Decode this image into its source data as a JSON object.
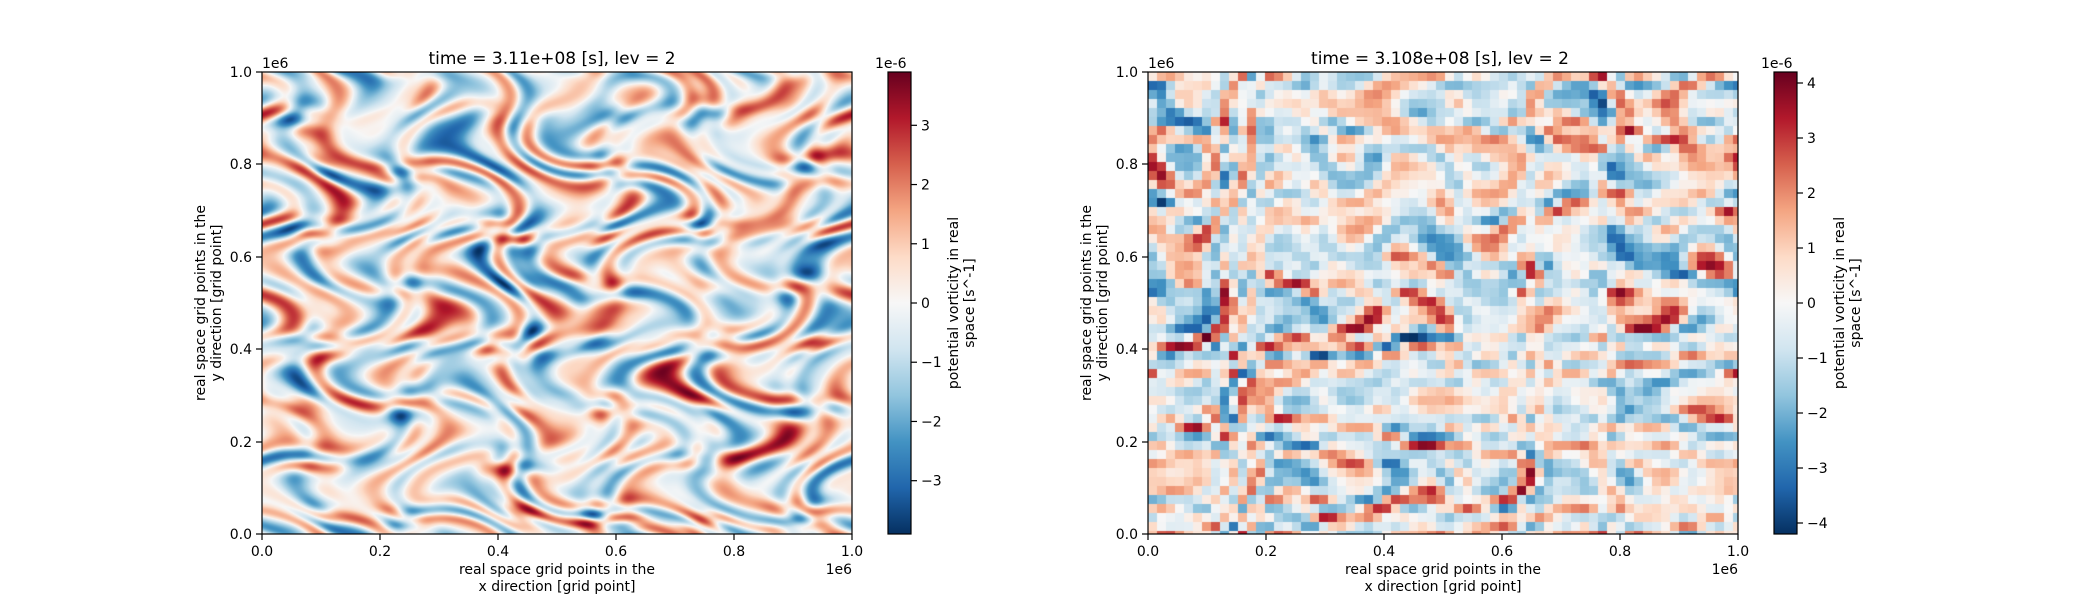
{
  "chart_data": [
    {
      "type": "heatmap",
      "title": "time = 3.11e+08 [s], lev = 2",
      "xlabel": [
        "real space grid points in the",
        "x direction [grid point]"
      ],
      "ylabel": [
        "real space grid points in the",
        "y direction [grid point]"
      ],
      "x_ticks": [
        "0.0",
        "0.2",
        "0.4",
        "0.6",
        "0.8",
        "1.0"
      ],
      "y_ticks": [
        "0.0",
        "0.2",
        "0.4",
        "0.6",
        "0.8",
        "1.0"
      ],
      "x_offset": "1e6",
      "y_offset": "1e6",
      "xlim": [
        0,
        1000000
      ],
      "ylim": [
        0,
        1000000
      ],
      "colormap": "RdBu_r",
      "resolution": "high (smooth)",
      "seed": 7,
      "colorbar": {
        "label": [
          "potential vorticity in real",
          "space [s^-1]"
        ],
        "offset": "1e-6",
        "range": [
          -3.9e-06,
          3.9e-06
        ],
        "ticks": [
          3,
          2,
          1,
          0,
          -1,
          -2,
          -3
        ],
        "tick_labels": [
          "3",
          "2",
          "1",
          "0",
          "−1",
          "−2",
          "−3"
        ]
      }
    },
    {
      "type": "heatmap",
      "title": "time = 3.108e+08 [s], lev = 2",
      "xlabel": [
        "real space grid points in the",
        "x direction [grid point]"
      ],
      "ylabel": [
        "real space grid points in the",
        "y direction [grid point]"
      ],
      "x_ticks": [
        "0.0",
        "0.2",
        "0.4",
        "0.6",
        "0.8",
        "1.0"
      ],
      "y_ticks": [
        "0.0",
        "0.2",
        "0.4",
        "0.6",
        "0.8",
        "1.0"
      ],
      "x_offset": "1e6",
      "y_offset": "1e6",
      "xlim": [
        0,
        1000000
      ],
      "ylim": [
        0,
        1000000
      ],
      "colormap": "RdBu_r",
      "resolution": "coarse (blocky)",
      "seed": 13,
      "colorbar": {
        "label": [
          "potential vorticity in real",
          "space [s^-1]"
        ],
        "offset": "1e-6",
        "range": [
          -4.2e-06,
          4.2e-06
        ],
        "ticks": [
          4,
          3,
          2,
          1,
          0,
          -1,
          -2,
          -3,
          -4
        ],
        "tick_labels": [
          "4",
          "3",
          "2",
          "1",
          "0",
          "−1",
          "−2",
          "−3",
          "−4"
        ]
      }
    }
  ]
}
